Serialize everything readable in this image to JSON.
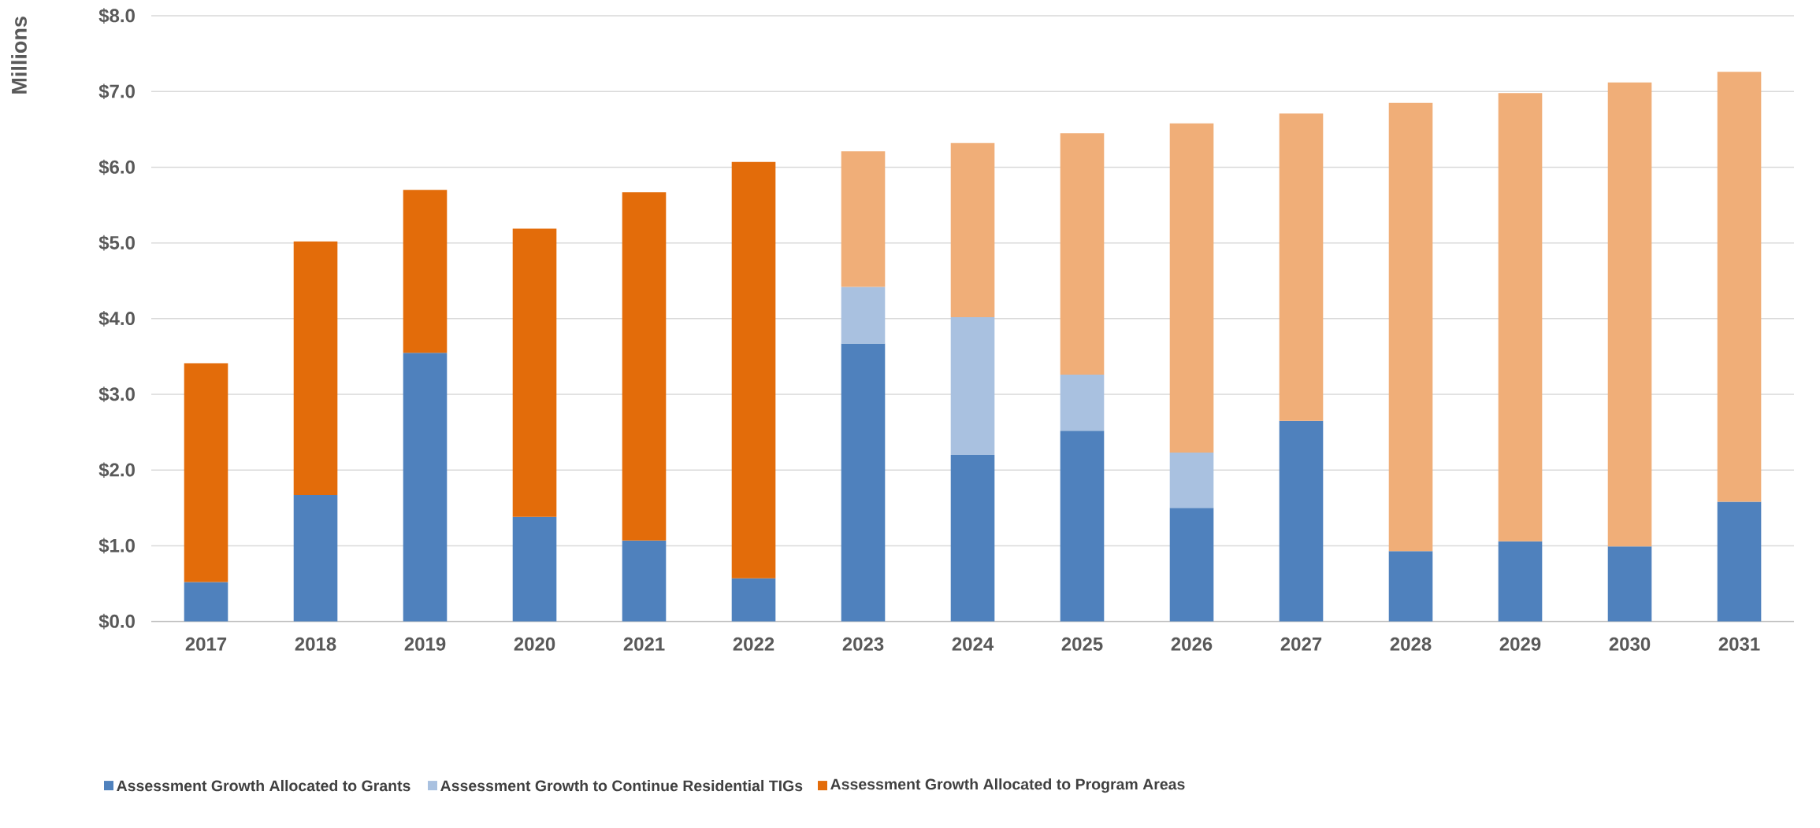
{
  "chart_data": {
    "type": "bar",
    "stacked": true,
    "ylabel": "Millions",
    "categories": [
      "2017",
      "2018",
      "2019",
      "2020",
      "2021",
      "2022",
      "2023",
      "2024",
      "2025",
      "2026",
      "2027",
      "2028",
      "2029",
      "2030",
      "2031"
    ],
    "series": [
      {
        "name": "Assessment Growth Allocated to Grants",
        "color": "#4f81bd",
        "values": [
          0.52,
          1.67,
          3.55,
          1.38,
          1.07,
          0.57,
          3.67,
          2.2,
          2.52,
          1.5,
          2.65,
          0.93,
          1.06,
          0.99,
          1.58
        ]
      },
      {
        "name": "Assessment Growth to Continue Residential TIGs",
        "color": "#a9c1e0",
        "values": [
          null,
          null,
          null,
          null,
          null,
          null,
          0.75,
          1.82,
          0.74,
          0.73,
          null,
          null,
          null,
          null,
          null
        ]
      },
      {
        "name": "Assessment Growth Allocated to Program Areas",
        "color": "#e36c0a",
        "values": [
          2.89,
          3.35,
          2.15,
          3.81,
          4.6,
          5.5,
          null,
          null,
          null,
          null,
          null,
          null,
          null,
          null,
          null
        ]
      },
      {
        "color": "#f0ae78",
        "values": [
          null,
          null,
          null,
          null,
          null,
          null,
          1.79,
          2.3,
          3.19,
          4.35,
          4.06,
          5.92,
          5.92,
          6.13,
          5.68
        ]
      }
    ],
    "ylim": [
      0,
      8
    ],
    "yticks": [
      {
        "value": 0,
        "label": "$0.0"
      },
      {
        "value": 1,
        "label": "$1.0"
      },
      {
        "value": 2,
        "label": "$2.0"
      },
      {
        "value": 3,
        "label": "$3.0"
      },
      {
        "value": 4,
        "label": "$4.0"
      },
      {
        "value": 5,
        "label": "$5.0"
      },
      {
        "value": 6,
        "label": "$6.0"
      },
      {
        "value": 7,
        "label": "$7.0"
      },
      {
        "value": 8,
        "label": "$8.0"
      }
    ],
    "grid": "y",
    "legend": "bottom"
  }
}
